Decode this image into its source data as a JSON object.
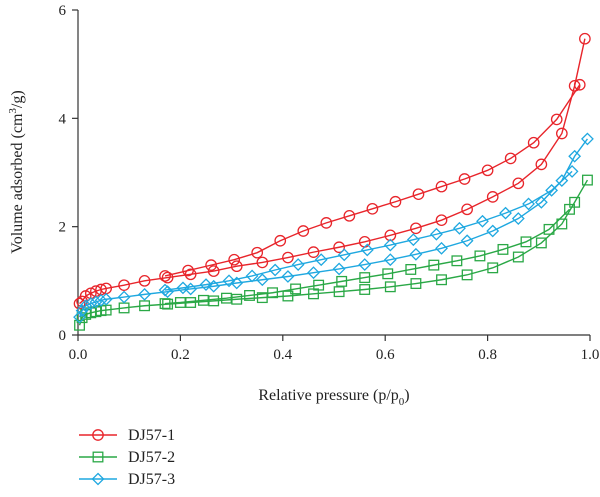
{
  "chart_data": {
    "type": "line",
    "title": "",
    "xlabel": "Relative pressure (p/p0)",
    "xlabel_parts": [
      "Relative pressure (p/p",
      "0",
      ")"
    ],
    "ylabel": "Volume adsorbed (cm3/g)",
    "ylabel_parts": [
      "Volume adsorbed (cm",
      "3",
      "/g)"
    ],
    "xlim": [
      0,
      1
    ],
    "ylim": [
      0,
      6
    ],
    "xticks": [
      "0.0",
      "0.2",
      "0.4",
      "0.6",
      "0.8",
      "1.0"
    ],
    "yticks": [
      "0",
      "2",
      "4",
      "6"
    ],
    "grid": false,
    "legend_position": "bottom-left",
    "series": [
      {
        "name": "DJ57-1",
        "color": "#e8252b",
        "marker": "circle",
        "adsorption": [
          [
            0.003,
            0.58
          ],
          [
            0.008,
            0.62
          ],
          [
            0.015,
            0.72
          ],
          [
            0.025,
            0.77
          ],
          [
            0.035,
            0.81
          ],
          [
            0.045,
            0.84
          ],
          [
            0.055,
            0.86
          ],
          [
            0.09,
            0.92
          ],
          [
            0.13,
            1.0
          ],
          [
            0.175,
            1.06
          ],
          [
            0.22,
            1.12
          ],
          [
            0.265,
            1.18
          ],
          [
            0.31,
            1.27
          ],
          [
            0.36,
            1.34
          ],
          [
            0.41,
            1.43
          ],
          [
            0.46,
            1.53
          ],
          [
            0.51,
            1.62
          ],
          [
            0.56,
            1.72
          ],
          [
            0.61,
            1.84
          ],
          [
            0.66,
            1.97
          ],
          [
            0.71,
            2.12
          ],
          [
            0.76,
            2.32
          ],
          [
            0.81,
            2.55
          ],
          [
            0.86,
            2.8
          ],
          [
            0.905,
            3.15
          ],
          [
            0.945,
            3.72
          ],
          [
            0.97,
            4.6
          ],
          [
            0.99,
            5.47
          ]
        ],
        "desorption": [
          [
            0.98,
            4.62
          ],
          [
            0.935,
            3.98
          ],
          [
            0.89,
            3.55
          ],
          [
            0.845,
            3.26
          ],
          [
            0.8,
            3.04
          ],
          [
            0.755,
            2.88
          ],
          [
            0.71,
            2.74
          ],
          [
            0.665,
            2.6
          ],
          [
            0.62,
            2.46
          ],
          [
            0.575,
            2.33
          ],
          [
            0.53,
            2.2
          ],
          [
            0.485,
            2.07
          ],
          [
            0.44,
            1.92
          ],
          [
            0.395,
            1.74
          ],
          [
            0.35,
            1.52
          ],
          [
            0.305,
            1.39
          ],
          [
            0.26,
            1.29
          ],
          [
            0.215,
            1.19
          ],
          [
            0.17,
            1.09
          ]
        ]
      },
      {
        "name": "DJ57-2",
        "color": "#2aa846",
        "marker": "square",
        "adsorption": [
          [
            0.003,
            0.18
          ],
          [
            0.008,
            0.32
          ],
          [
            0.015,
            0.38
          ],
          [
            0.025,
            0.41
          ],
          [
            0.035,
            0.43
          ],
          [
            0.045,
            0.45
          ],
          [
            0.055,
            0.46
          ],
          [
            0.09,
            0.5
          ],
          [
            0.13,
            0.54
          ],
          [
            0.175,
            0.57
          ],
          [
            0.22,
            0.6
          ],
          [
            0.265,
            0.63
          ],
          [
            0.31,
            0.66
          ],
          [
            0.36,
            0.69
          ],
          [
            0.41,
            0.72
          ],
          [
            0.46,
            0.76
          ],
          [
            0.51,
            0.8
          ],
          [
            0.56,
            0.84
          ],
          [
            0.61,
            0.89
          ],
          [
            0.66,
            0.95
          ],
          [
            0.71,
            1.02
          ],
          [
            0.76,
            1.11
          ],
          [
            0.81,
            1.24
          ],
          [
            0.86,
            1.44
          ],
          [
            0.905,
            1.7
          ],
          [
            0.945,
            2.05
          ],
          [
            0.97,
            2.45
          ],
          [
            0.995,
            2.86
          ]
        ],
        "desorption": [
          [
            0.96,
            2.32
          ],
          [
            0.92,
            1.95
          ],
          [
            0.875,
            1.72
          ],
          [
            0.83,
            1.58
          ],
          [
            0.785,
            1.46
          ],
          [
            0.74,
            1.37
          ],
          [
            0.695,
            1.29
          ],
          [
            0.65,
            1.21
          ],
          [
            0.605,
            1.13
          ],
          [
            0.56,
            1.06
          ],
          [
            0.515,
            0.99
          ],
          [
            0.47,
            0.92
          ],
          [
            0.425,
            0.85
          ],
          [
            0.38,
            0.78
          ],
          [
            0.335,
            0.73
          ],
          [
            0.29,
            0.68
          ],
          [
            0.245,
            0.64
          ],
          [
            0.2,
            0.6
          ],
          [
            0.17,
            0.58
          ]
        ]
      },
      {
        "name": "DJ57-3",
        "color": "#1fa8e0",
        "marker": "diamond",
        "adsorption": [
          [
            0.003,
            0.33
          ],
          [
            0.008,
            0.45
          ],
          [
            0.015,
            0.54
          ],
          [
            0.025,
            0.58
          ],
          [
            0.035,
            0.61
          ],
          [
            0.045,
            0.64
          ],
          [
            0.055,
            0.66
          ],
          [
            0.09,
            0.7
          ],
          [
            0.13,
            0.75
          ],
          [
            0.175,
            0.8
          ],
          [
            0.22,
            0.85
          ],
          [
            0.265,
            0.9
          ],
          [
            0.31,
            0.96
          ],
          [
            0.36,
            1.02
          ],
          [
            0.41,
            1.08
          ],
          [
            0.46,
            1.15
          ],
          [
            0.51,
            1.22
          ],
          [
            0.56,
            1.3
          ],
          [
            0.61,
            1.39
          ],
          [
            0.66,
            1.49
          ],
          [
            0.71,
            1.6
          ],
          [
            0.76,
            1.74
          ],
          [
            0.81,
            1.92
          ],
          [
            0.86,
            2.15
          ],
          [
            0.905,
            2.45
          ],
          [
            0.945,
            2.85
          ],
          [
            0.97,
            3.3
          ],
          [
            0.995,
            3.62
          ]
        ],
        "desorption": [
          [
            0.965,
            3.02
          ],
          [
            0.925,
            2.67
          ],
          [
            0.88,
            2.42
          ],
          [
            0.835,
            2.25
          ],
          [
            0.79,
            2.1
          ],
          [
            0.745,
            1.97
          ],
          [
            0.7,
            1.86
          ],
          [
            0.655,
            1.76
          ],
          [
            0.61,
            1.66
          ],
          [
            0.565,
            1.57
          ],
          [
            0.52,
            1.48
          ],
          [
            0.475,
            1.39
          ],
          [
            0.43,
            1.3
          ],
          [
            0.385,
            1.2
          ],
          [
            0.34,
            1.09
          ],
          [
            0.295,
            1.0
          ],
          [
            0.25,
            0.93
          ],
          [
            0.205,
            0.87
          ],
          [
            0.17,
            0.83
          ]
        ]
      }
    ]
  }
}
